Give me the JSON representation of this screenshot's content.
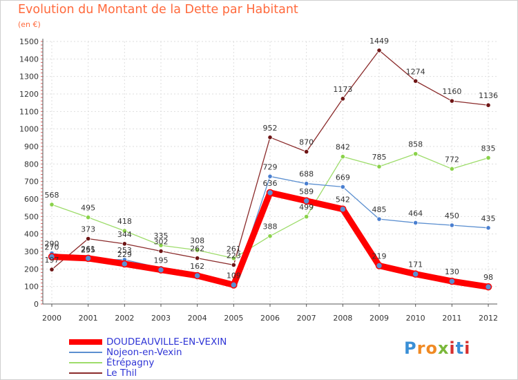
{
  "header": {
    "title": "Evolution du Montant de la Dette par Habitant",
    "unit": "(en €)"
  },
  "logo": {
    "text": "Proxiti",
    "colors": [
      "#3a8fd6",
      "#f08a24",
      "#f08a24",
      "#7ab83a",
      "#d6302f",
      "#3a8fd6",
      "#d6302f"
    ]
  },
  "chart_data": {
    "type": "line",
    "title": "Evolution du Montant de la Dette par Habitant",
    "subtitle": "(en €)",
    "xlabel": "",
    "ylabel": "",
    "x": [
      "2000",
      "2001",
      "2002",
      "2003",
      "2004",
      "2005",
      "2006",
      "2007",
      "2008",
      "2009",
      "2010",
      "2011",
      "2012"
    ],
    "ylim": [
      0,
      1500
    ],
    "yticks": [
      0,
      100,
      200,
      300,
      400,
      500,
      600,
      700,
      800,
      900,
      1000,
      1100,
      1200,
      1300,
      1400,
      1500
    ],
    "grid": true,
    "legend_position": "bottom-left",
    "series": [
      {
        "name": "DOUDEAUVILLE-EN-VEXIN",
        "color": "#ff0000",
        "marker_fill": "#5b8fd0",
        "values": [
          270,
          261,
          229,
          195,
          162,
          109,
          636,
          589,
          542,
          219,
          171,
          130,
          98
        ],
        "labels": [
          "270",
          "261",
          "229",
          "195",
          "162",
          "109",
          "636",
          "589",
          "542",
          "219",
          "171",
          "130",
          "98"
        ]
      },
      {
        "name": "Nojeon-en-Vexin",
        "color": "#5b8fd0",
        "marker_fill": "#4a7fd0",
        "values": [
          290,
          255,
          253,
          206,
          168,
          100,
          729,
          688,
          669,
          485,
          464,
          450,
          435
        ],
        "labels": [
          "290",
          "255",
          "253",
          "",
          "",
          "",
          "729",
          "688",
          "669",
          "485",
          "464",
          "450",
          "435"
        ]
      },
      {
        "name": "Étrépagny",
        "color": "#9ddc6a",
        "marker_fill": "#8ad24a",
        "values": [
          568,
          495,
          418,
          335,
          308,
          261,
          388,
          499,
          842,
          785,
          858,
          772,
          835
        ],
        "labels": [
          "568",
          "495",
          "418",
          "335",
          "308",
          "261",
          "388",
          "499",
          "842",
          "785",
          "858",
          "772",
          "835"
        ]
      },
      {
        "name": "Le Thil",
        "color": "#8a2a2a",
        "marker_fill": "#6e1515",
        "values": [
          197,
          373,
          344,
          302,
          262,
          223,
          952,
          870,
          1173,
          1449,
          1274,
          1160,
          1136
        ],
        "labels": [
          "197",
          "373",
          "344",
          "302",
          "262",
          "223",
          "952",
          "870",
          "1173",
          "1449",
          "1274",
          "1160",
          "1136"
        ]
      }
    ]
  }
}
